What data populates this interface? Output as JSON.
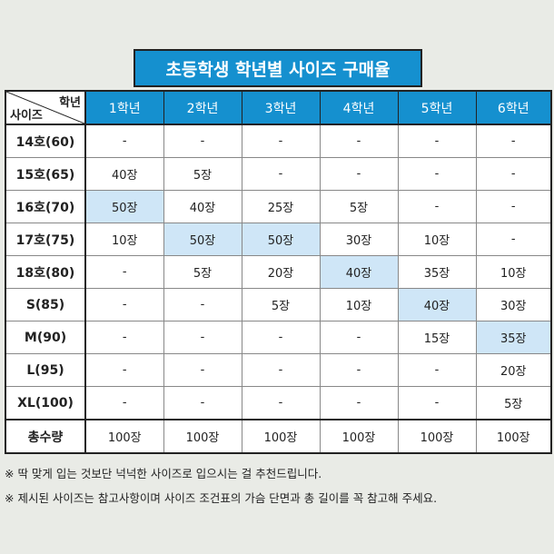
{
  "title": "초등학생 학년별 사이즈 구매율",
  "table": {
    "corner_grade": "학년",
    "corner_size": "사이즈",
    "grades": [
      "1학년",
      "2학년",
      "3학년",
      "4학년",
      "5학년",
      "6학년"
    ],
    "rows": [
      {
        "size": "14호(60)",
        "cells": [
          "-",
          "-",
          "-",
          "-",
          "-",
          "-"
        ]
      },
      {
        "size": "15호(65)",
        "cells": [
          "40장",
          "5장",
          "-",
          "-",
          "-",
          "-"
        ]
      },
      {
        "size": "16호(70)",
        "cells": [
          "50장",
          "40장",
          "25장",
          "5장",
          "-",
          "-"
        ]
      },
      {
        "size": "17호(75)",
        "cells": [
          "10장",
          "50장",
          "50장",
          "30장",
          "10장",
          "-"
        ]
      },
      {
        "size": "18호(80)",
        "cells": [
          "-",
          "5장",
          "20장",
          "40장",
          "35장",
          "10장"
        ]
      },
      {
        "size": "S(85)",
        "cells": [
          "-",
          "-",
          "5장",
          "10장",
          "40장",
          "30장"
        ]
      },
      {
        "size": "M(90)",
        "cells": [
          "-",
          "-",
          "-",
          "-",
          "15장",
          "35장"
        ]
      },
      {
        "size": "L(95)",
        "cells": [
          "-",
          "-",
          "-",
          "-",
          "-",
          "20장"
        ]
      },
      {
        "size": "XL(100)",
        "cells": [
          "-",
          "-",
          "-",
          "-",
          "-",
          "5장"
        ]
      },
      {
        "size": "총수량",
        "cells": [
          "100장",
          "100장",
          "100장",
          "100장",
          "100장",
          "100장"
        ]
      }
    ],
    "highlight_color": "#cfe6f7"
  },
  "notes": [
    "※ 딱 맞게 입는 것보단 넉넉한 사이즈로 입으시는 걸 추천드립니다.",
    "※ 제시된 사이즈는 참고사항이며 사이즈 조건표의 가슴 단면과 총 길이를 꼭 참고해 주세요."
  ],
  "colors": {
    "header_blue": "#1590cf",
    "background": "#e9ebe6"
  }
}
